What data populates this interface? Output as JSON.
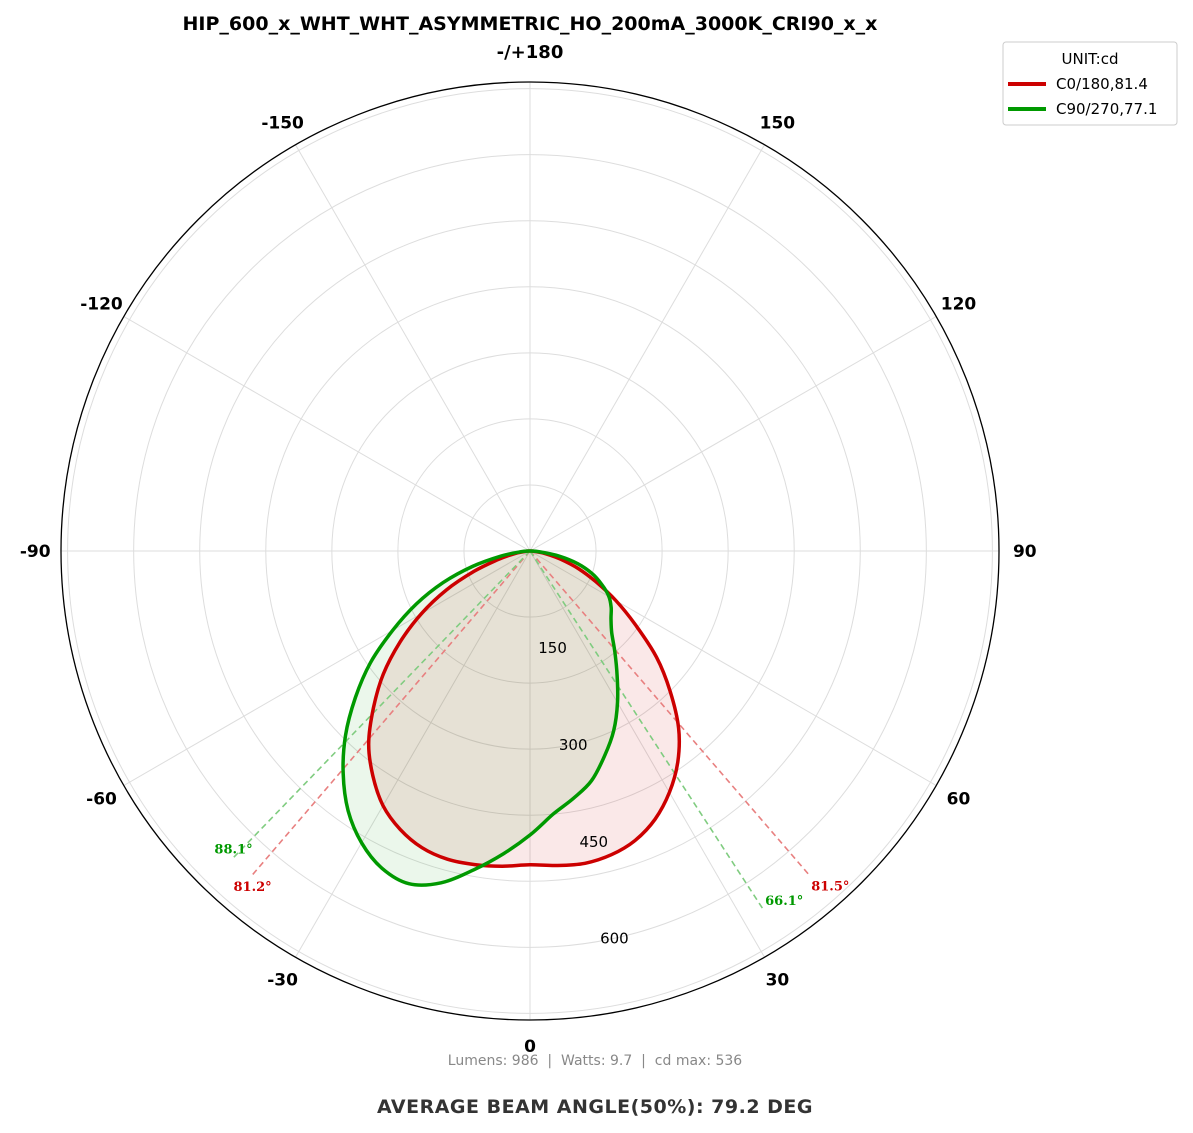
{
  "chart_data": {
    "type": "polar",
    "title": "HIP_600_x_WHT_WHT_ASYMMETRIC_HO_200mA_3000K_CRI90_x_x",
    "top_label": "-/+180",
    "unit_label": "UNIT:cd",
    "angle_ticks": [
      {
        "deg": 0,
        "label": "0"
      },
      {
        "deg": 30,
        "label": "30"
      },
      {
        "deg": 60,
        "label": "60"
      },
      {
        "deg": 90,
        "label": "90"
      },
      {
        "deg": 120,
        "label": "120"
      },
      {
        "deg": 150,
        "label": "150"
      },
      {
        "deg": -30,
        "label": "-30"
      },
      {
        "deg": -60,
        "label": "-60"
      },
      {
        "deg": -90,
        "label": "-90"
      },
      {
        "deg": -120,
        "label": "-120"
      },
      {
        "deg": -150,
        "label": "-150"
      }
    ],
    "radial_ticks": [
      {
        "value": 150,
        "label": "150"
      },
      {
        "value": 300,
        "label": "300"
      },
      {
        "value": 450,
        "label": "450"
      },
      {
        "value": 600,
        "label": "600"
      }
    ],
    "rmax": 710,
    "series": [
      {
        "name": "C0/180,81.4",
        "color": "#cc0000",
        "angles": [
          -90,
          -85,
          -80,
          -75,
          -70,
          -65,
          -60,
          -55,
          -50,
          -45,
          -40,
          -35,
          -30,
          -25,
          -20,
          -15,
          -10,
          -5,
          0,
          5,
          10,
          15,
          20,
          25,
          30,
          35,
          40,
          45,
          50,
          55,
          60,
          65,
          70,
          75,
          80,
          85,
          90
        ],
        "values": [
          0,
          8,
          25,
          50,
          90,
          140,
          190,
          240,
          290,
          335,
          380,
          415,
          445,
          465,
          478,
          483,
          482,
          479,
          475,
          478,
          480,
          476,
          466,
          448,
          422,
          390,
          350,
          300,
          250,
          195,
          150,
          110,
          78,
          48,
          25,
          8,
          0
        ],
        "beam_angles": [
          {
            "deg": -40.6,
            "label": "81.2°"
          },
          {
            "deg": 40.75,
            "label": "81.5°"
          }
        ]
      },
      {
        "name": "C90/270,77.1",
        "color": "#009900",
        "angles": [
          -90,
          -85,
          -80,
          -75,
          -70,
          -65,
          -60,
          -55,
          -50,
          -45,
          -40,
          -35,
          -30,
          -25,
          -20,
          -15,
          -10,
          -5,
          0,
          5,
          10,
          15,
          20,
          25,
          30,
          35,
          40,
          45,
          50,
          55,
          60,
          65,
          70,
          75,
          80,
          85,
          90
        ],
        "values": [
          0,
          15,
          45,
          90,
          140,
          190,
          240,
          295,
          345,
          395,
          440,
          480,
          510,
          530,
          536,
          520,
          490,
          460,
          430,
          400,
          380,
          360,
          330,
          300,
          265,
          230,
          200,
          175,
          160,
          150,
          138,
          120,
          100,
          75,
          45,
          15,
          0
        ],
        "beam_angles": [
          {
            "deg": -44.05,
            "label": "88.1°"
          },
          {
            "deg": 33.05,
            "label": "66.1°"
          }
        ]
      }
    ],
    "legend_position": "top-right",
    "grid": true
  },
  "stats_line": "Lumens: 986  |  Watts: 9.7  |  cd max: 536",
  "footer": "AVERAGE BEAM ANGLE(50%): 79.2 DEG"
}
